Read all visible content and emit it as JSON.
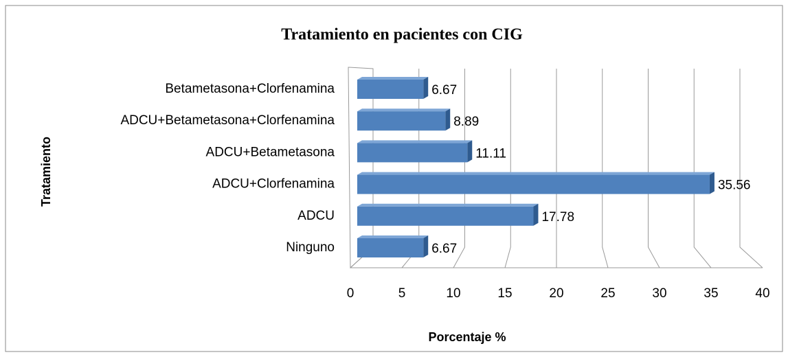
{
  "chart_data": {
    "type": "bar",
    "orientation": "horizontal",
    "title": "Tratamiento en pacientes con CIG",
    "xlabel": "Porcentaje %",
    "ylabel": "Tratamiento",
    "categories": [
      "Betametasona+Clorfenamina",
      "ADCU+Betametasona+Clorfenamina",
      "ADCU+Betametasona",
      "ADCU+Clorfenamina",
      "ADCU",
      "Ninguno"
    ],
    "values": [
      6.67,
      8.89,
      11.11,
      35.56,
      17.78,
      6.67
    ],
    "color": "#4f81bd",
    "xlim": [
      0,
      40
    ],
    "xticks": [
      0,
      5,
      10,
      15,
      20,
      25,
      30,
      35,
      40
    ],
    "grid": true
  }
}
